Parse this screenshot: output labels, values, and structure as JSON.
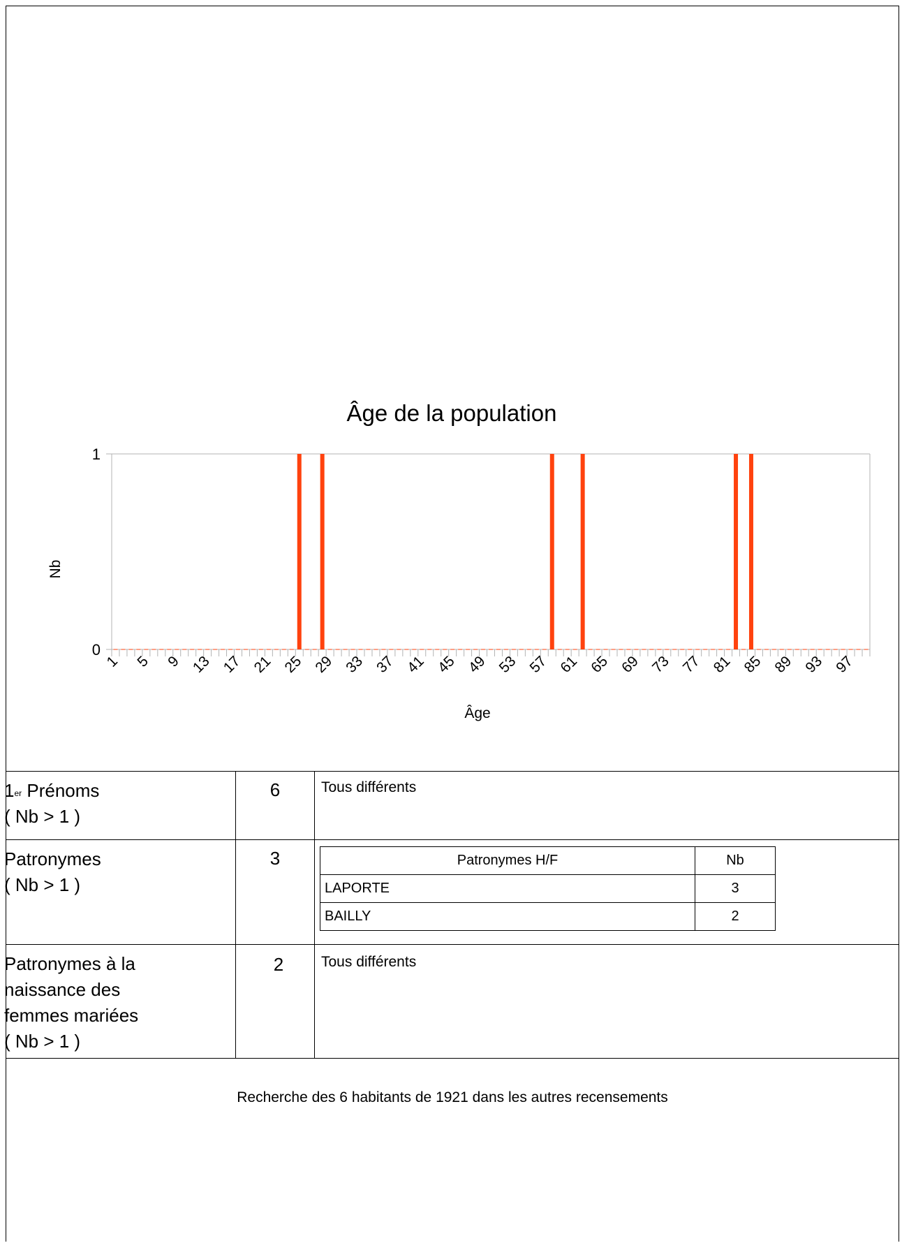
{
  "chart_data": {
    "type": "bar",
    "title": "Âge de la population",
    "xlabel": "Âge",
    "ylabel": "Nb",
    "ylim": [
      0,
      1
    ],
    "y_ticks": [
      "0",
      "1"
    ],
    "categories": [
      1,
      2,
      3,
      4,
      5,
      6,
      7,
      8,
      9,
      10,
      11,
      12,
      13,
      14,
      15,
      16,
      17,
      18,
      19,
      20,
      21,
      22,
      23,
      24,
      25,
      26,
      27,
      28,
      29,
      30,
      31,
      32,
      33,
      34,
      35,
      36,
      37,
      38,
      39,
      40,
      41,
      42,
      43,
      44,
      45,
      46,
      47,
      48,
      49,
      50,
      51,
      52,
      53,
      54,
      55,
      56,
      57,
      58,
      59,
      60,
      61,
      62,
      63,
      64,
      65,
      66,
      67,
      68,
      69,
      70,
      71,
      72,
      73,
      74,
      75,
      76,
      77,
      78,
      79,
      80,
      81,
      82,
      83,
      84,
      85,
      86,
      87,
      88,
      89,
      90,
      91,
      92,
      93,
      94,
      95,
      96,
      97,
      98,
      99
    ],
    "x_tick_labels": [
      "1",
      "5",
      "9",
      "13",
      "17",
      "21",
      "25",
      "29",
      "33",
      "37",
      "41",
      "45",
      "49",
      "53",
      "57",
      "61",
      "65",
      "69",
      "73",
      "77",
      "81",
      "85",
      "89",
      "93",
      "97"
    ],
    "values": [
      0,
      0,
      0,
      0,
      0,
      0,
      0,
      0,
      0,
      0,
      0,
      0,
      0,
      0,
      0,
      0,
      0,
      0,
      0,
      0,
      0,
      0,
      0,
      0,
      1,
      0,
      0,
      1,
      0,
      0,
      0,
      0,
      0,
      0,
      0,
      0,
      0,
      0,
      0,
      0,
      0,
      0,
      0,
      0,
      0,
      0,
      0,
      0,
      0,
      0,
      0,
      0,
      0,
      0,
      0,
      0,
      0,
      1,
      0,
      0,
      0,
      1,
      0,
      0,
      0,
      0,
      0,
      0,
      0,
      0,
      0,
      0,
      0,
      0,
      0,
      0,
      0,
      0,
      0,
      0,
      0,
      1,
      0,
      1,
      0,
      0,
      0,
      0,
      0,
      0,
      0,
      0,
      0,
      0,
      0,
      0,
      0,
      0,
      0
    ],
    "bar_color": "#ff420e",
    "grid": false
  },
  "table": {
    "prenoms": {
      "label_main": "1",
      "label_sup": "er",
      "label_rest": " Prénoms",
      "condition": "( Nb > 1 )",
      "count": "6",
      "detail": "Tous différents"
    },
    "patronymes": {
      "label": "Patronymes",
      "condition": "( Nb > 1 )",
      "count": "3",
      "subtable": {
        "header_name": "Patronymes H/F",
        "header_nb": "Nb",
        "rows": [
          {
            "name": "LAPORTE",
            "nb": "3"
          },
          {
            "name": "BAILLY",
            "nb": "2"
          }
        ]
      }
    },
    "naissance": {
      "line1": "Patronymes à la",
      "line2": "naissance des",
      "line3": "femmes mariées",
      "condition": "( Nb > 1 )",
      "count": "2",
      "detail": "Tous différents"
    }
  },
  "footer": {
    "text": "Recherche des 6 habitants de 1921 dans les autres recensements"
  }
}
